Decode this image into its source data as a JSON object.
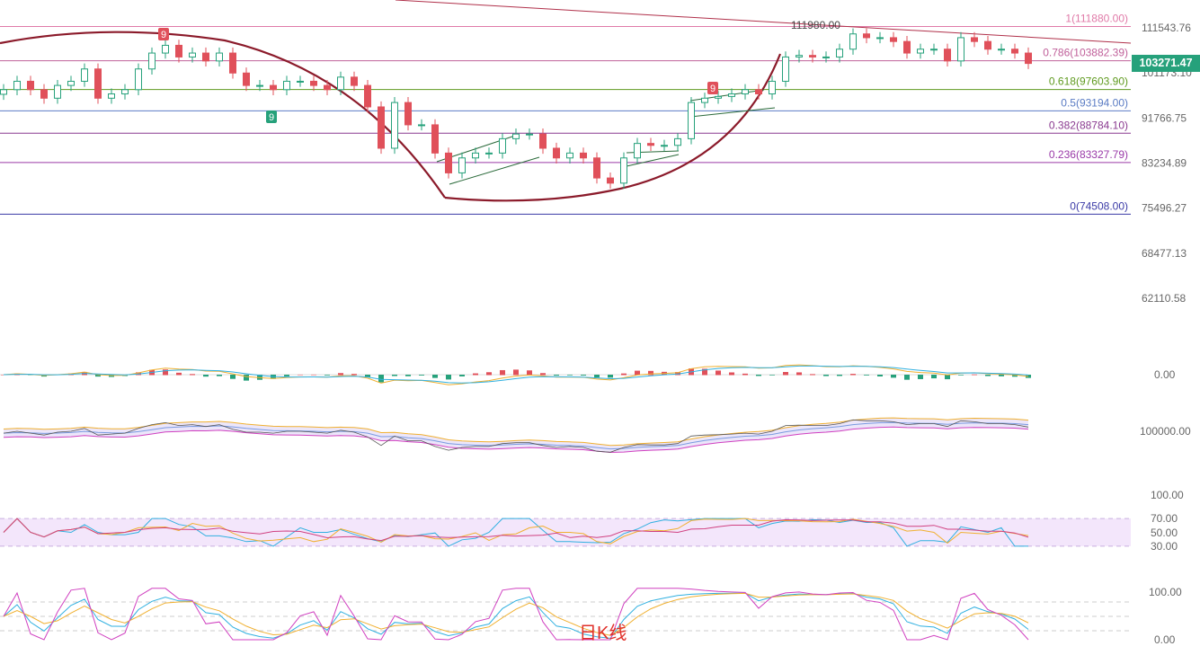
{
  "chart_data": {
    "type": "candlestick",
    "title": "",
    "period_label": "日K线",
    "y_scale": "log",
    "y_ticks": [
      "111543.76",
      "101173.10",
      "91766.75",
      "83234.89",
      "75496.27",
      "68477.13",
      "62110.58"
    ],
    "closes": [
      97573,
      99361,
      97573,
      95785,
      98467,
      99361,
      102043,
      95785,
      96679,
      97573,
      102043,
      105619,
      107407,
      104725,
      105619,
      103831,
      105619,
      101149,
      98467,
      98467,
      97573,
      99361,
      99361,
      98467,
      97573,
      100255,
      98467,
      93997,
      85951,
      94891,
      90421,
      90421,
      85057,
      81481,
      84163,
      85057,
      85057,
      87739,
      88633,
      88633,
      85951,
      84163,
      85057,
      84163,
      80587,
      79693,
      84163,
      86845,
      86488,
      86488,
      87739,
      94891,
      95785,
      96143,
      96679,
      97573,
      96679,
      99361,
      104725,
      105083,
      104725,
      104725,
      106513,
      110089,
      109195,
      109195,
      108301,
      105619,
      106513,
      106513,
      103831,
      109195,
      108301,
      106513,
      106513,
      105619,
      103271
    ],
    "last_price": "103271.47",
    "peak_label": "111980.00",
    "fibonacci": [
      {
        "label": "1(111880.00)",
        "price": 111880,
        "color": "#e07aa8"
      },
      {
        "label": "0.786(103882.39)",
        "price": 103882.39,
        "color": "#c0609a"
      },
      {
        "label": "0.618(97603.90)",
        "price": 97603.9,
        "color": "#5f9a1f"
      },
      {
        "label": "0.5(93194.00)",
        "price": 93194,
        "color": "#5b7cc4"
      },
      {
        "label": "0.382(88784.10)",
        "price": 88784.1,
        "color": "#8a3a90"
      },
      {
        "label": "0.236(83327.79)",
        "price": 83327.79,
        "color": "#9a3aa8"
      },
      {
        "label": "0(74508.00)",
        "price": 74508,
        "color": "#3a3aa6"
      }
    ],
    "td_markers": [
      {
        "text": "9",
        "color": "#e0505a"
      },
      {
        "text": "9",
        "color": "#26a17b"
      },
      {
        "text": "9",
        "color": "#e0505a"
      }
    ],
    "colors": {
      "up": "#26a17b",
      "down": "#e0505a",
      "arc": "#8b1a2a"
    },
    "indicators": {
      "macd": {
        "ticks": [
          "0.00"
        ]
      },
      "boll": {
        "ticks": [
          "100000.00"
        ]
      },
      "rsi": {
        "ticks": [
          "100.00",
          "70.00",
          "50.00",
          "30.00"
        ]
      },
      "kdj": {
        "ticks": [
          "100.00",
          "0.00"
        ]
      }
    }
  }
}
